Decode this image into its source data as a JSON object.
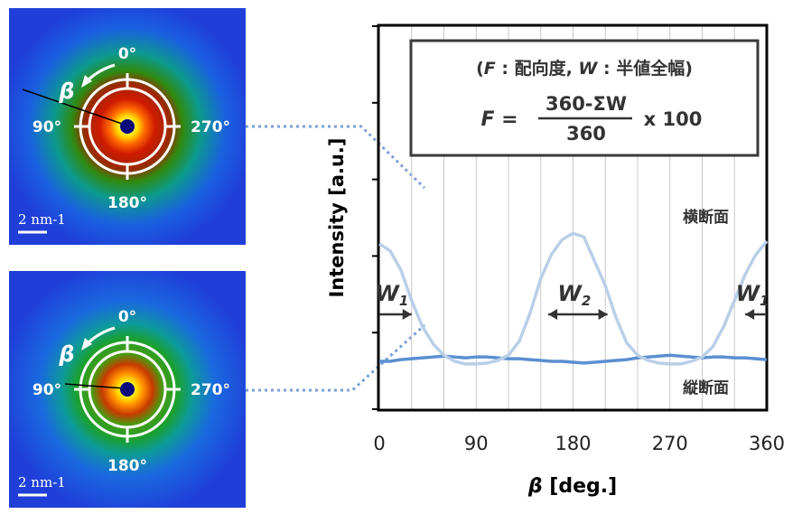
{
  "patterns": [
    {
      "id": "top",
      "angle_top": "0°",
      "angle_left": "90°",
      "angle_right": "270°",
      "angle_bottom": "180°",
      "beta_symbol": "β",
      "scale_label": "2 nm-1"
    },
    {
      "id": "bottom",
      "angle_top": "0°",
      "angle_left": "90°",
      "angle_right": "270°",
      "angle_bottom": "180°",
      "beta_symbol": "β",
      "scale_label": "2 nm-1"
    }
  ],
  "colors": {
    "transverse": "#5b8fd0",
    "longitudinal": "#b9cfe8",
    "connector": "#7aa0d4",
    "pattern_background": "#1f3fd8"
  },
  "chart_data": {
    "type": "line",
    "xlabel_symbol": "β",
    "xlabel_unit": "[deg.]",
    "ylabel": "Intensity [a.u.]",
    "xlim": [
      0,
      360
    ],
    "x_ticks": [
      0,
      90,
      180,
      270,
      360
    ],
    "x_tick_labels": [
      "0",
      "90",
      "180",
      "270",
      "360"
    ],
    "y_axis_values_shown": false,
    "vertical_grid_step": 30,
    "horizontal_ticks": 5,
    "grid": true,
    "series": [
      {
        "name": "横断面",
        "x": [
          0,
          10,
          20,
          30,
          40,
          50,
          60,
          70,
          80,
          90,
          100,
          110,
          120,
          130,
          140,
          150,
          160,
          170,
          180,
          190,
          200,
          210,
          220,
          230,
          240,
          250,
          260,
          270,
          280,
          290,
          300,
          310,
          320,
          330,
          340,
          350,
          360
        ],
        "y": [
          0.55,
          0.55,
          0.57,
          0.58,
          0.59,
          0.6,
          0.61,
          0.6,
          0.59,
          0.6,
          0.6,
          0.59,
          0.58,
          0.58,
          0.57,
          0.56,
          0.55,
          0.55,
          0.54,
          0.53,
          0.54,
          0.55,
          0.56,
          0.57,
          0.59,
          0.6,
          0.61,
          0.62,
          0.61,
          0.6,
          0.59,
          0.6,
          0.6,
          0.59,
          0.59,
          0.58,
          0.57
        ]
      },
      {
        "name": "縦断面",
        "x": [
          0,
          10,
          20,
          30,
          40,
          50,
          60,
          70,
          80,
          90,
          100,
          110,
          120,
          130,
          140,
          150,
          160,
          170,
          180,
          190,
          200,
          210,
          220,
          230,
          240,
          250,
          260,
          270,
          280,
          290,
          300,
          310,
          320,
          330,
          340,
          350,
          360
        ],
        "y": [
          1.9,
          1.82,
          1.6,
          1.25,
          0.95,
          0.75,
          0.62,
          0.55,
          0.52,
          0.52,
          0.53,
          0.56,
          0.62,
          0.78,
          1.1,
          1.5,
          1.78,
          1.95,
          2.02,
          1.98,
          1.7,
          1.42,
          1.05,
          0.76,
          0.62,
          0.56,
          0.53,
          0.52,
          0.52,
          0.55,
          0.6,
          0.72,
          0.95,
          1.25,
          1.55,
          1.78,
          1.93
        ]
      }
    ],
    "ylim": [
      0,
      4.4
    ],
    "widths": [
      {
        "label": "W",
        "sub": "1",
        "from": 0,
        "to": 30
      },
      {
        "label": "W",
        "sub": "2",
        "from": 157,
        "to": 212
      },
      {
        "label": "W",
        "sub": "1",
        "from": 340,
        "to": 360
      }
    ],
    "formula_box": {
      "line1_open": "(",
      "line1_F": "F",
      "line1_mid": " : 配向度, ",
      "line1_W": "W",
      "line1_end": " : 半値全幅)",
      "lhs": "F =",
      "numerator": "360-ΣW",
      "denominator": "360",
      "multiplier": "x 100"
    }
  }
}
